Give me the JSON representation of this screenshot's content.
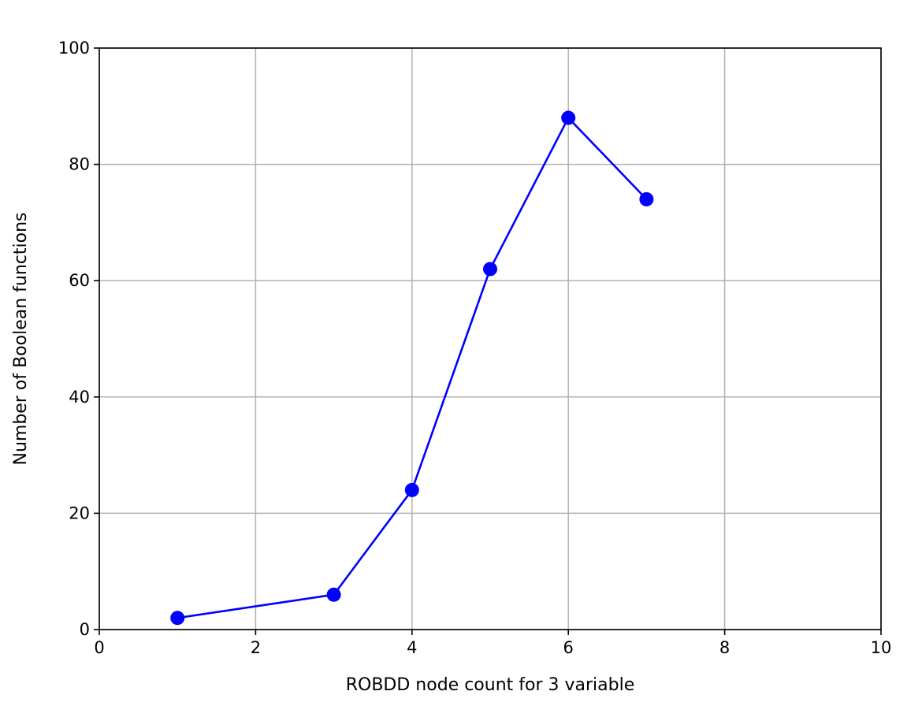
{
  "chart_data": {
    "type": "line",
    "title": "",
    "xlabel": "ROBDD node count for 3 variable",
    "ylabel": "Number of Boolean functions",
    "xlim": [
      0,
      10
    ],
    "ylim": [
      0,
      100
    ],
    "xticks": [
      0,
      2,
      4,
      6,
      8,
      10
    ],
    "yticks": [
      0,
      20,
      40,
      60,
      80,
      100
    ],
    "grid": true,
    "marker": "circle",
    "series": [
      {
        "color": "#0000ff",
        "x": [
          1,
          3,
          4,
          5,
          6,
          7
        ],
        "y": [
          2,
          6,
          24,
          62,
          88,
          74
        ]
      }
    ]
  }
}
